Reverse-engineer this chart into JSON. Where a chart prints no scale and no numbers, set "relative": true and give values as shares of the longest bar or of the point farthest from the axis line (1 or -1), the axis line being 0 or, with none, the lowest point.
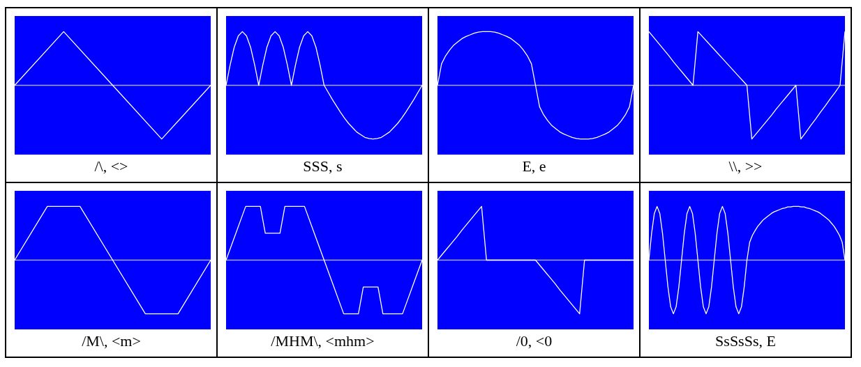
{
  "chart_data": [
    {
      "type": "line",
      "title": "/\\, <>",
      "relative": true,
      "marker": "none",
      "categories": [
        null,
        null,
        null,
        null,
        null
      ],
      "series": [
        {
          "color": "#ffffff",
          "values": [
            0,
            1,
            0,
            -1,
            0
          ]
        }
      ]
    },
    {
      "type": "line",
      "title": "SSS, s",
      "relative": true,
      "marker": "none",
      "categories": [
        null,
        null,
        null,
        null,
        null,
        null,
        null,
        null,
        null,
        null,
        null,
        null,
        null,
        null,
        null,
        null,
        null,
        null,
        null,
        null,
        null,
        null,
        null,
        null,
        null,
        null,
        null,
        null,
        null,
        null,
        null,
        null,
        null,
        null,
        null,
        null,
        null,
        null,
        null,
        null,
        null,
        null,
        null,
        null,
        null,
        null,
        null,
        null,
        null
      ],
      "series": [
        {
          "color": "#ffffff",
          "values": [
            0,
            0.38,
            0.71,
            0.92,
            1,
            0.92,
            0.71,
            0.38,
            0,
            0.38,
            0.71,
            0.92,
            1,
            0.92,
            0.71,
            0.38,
            0,
            0.38,
            0.71,
            0.92,
            1,
            0.92,
            0.71,
            0.38,
            0,
            -0.13,
            -0.26,
            -0.38,
            -0.5,
            -0.61,
            -0.71,
            -0.79,
            -0.87,
            -0.92,
            -0.97,
            -0.99,
            -1,
            -0.99,
            -0.97,
            -0.92,
            -0.87,
            -0.79,
            -0.71,
            -0.61,
            -0.5,
            -0.38,
            -0.26,
            -0.13,
            0
          ]
        }
      ]
    },
    {
      "type": "line",
      "title": "E, e",
      "relative": true,
      "marker": "none",
      "categories": [
        null,
        null,
        null,
        null,
        null,
        null,
        null,
        null,
        null,
        null,
        null,
        null,
        null,
        null,
        null,
        null,
        null,
        null,
        null,
        null,
        null,
        null,
        null,
        null,
        null,
        null,
        null,
        null,
        null,
        null,
        null,
        null,
        null,
        null,
        null,
        null,
        null,
        null,
        null,
        null,
        null,
        null,
        null,
        null,
        null,
        null,
        null,
        null,
        null
      ],
      "series": [
        {
          "color": "#ffffff",
          "values": [
            0,
            0.4,
            0.55,
            0.66,
            0.75,
            0.81,
            0.87,
            0.91,
            0.94,
            0.97,
            0.99,
            1,
            1,
            1,
            0.99,
            0.97,
            0.94,
            0.91,
            0.87,
            0.81,
            0.75,
            0.66,
            0.55,
            0.4,
            0,
            -0.4,
            -0.55,
            -0.66,
            -0.75,
            -0.81,
            -0.87,
            -0.91,
            -0.94,
            -0.97,
            -0.99,
            -1,
            -1,
            -1,
            -0.99,
            -0.97,
            -0.94,
            -0.91,
            -0.87,
            -0.81,
            -0.75,
            -0.66,
            -0.55,
            -0.4,
            0
          ]
        }
      ]
    },
    {
      "type": "line",
      "title": "\\\\, >>",
      "relative": true,
      "marker": "none",
      "categories": [
        null,
        null,
        null,
        null,
        null,
        null,
        null,
        null,
        null,
        null,
        null,
        null,
        null,
        null,
        null,
        null,
        null,
        null,
        null,
        null,
        null,
        null,
        null,
        null,
        null,
        null,
        null,
        null,
        null,
        null,
        null,
        null,
        null,
        null,
        null,
        null,
        null,
        null,
        null,
        null,
        null
      ],
      "series": [
        {
          "color": "#ffffff",
          "values": [
            1,
            0.89,
            0.78,
            0.67,
            0.56,
            0.44,
            0.33,
            0.22,
            0.11,
            0,
            1,
            0.9,
            0.8,
            0.7,
            0.6,
            0.5,
            0.4,
            0.3,
            0.2,
            0.1,
            0,
            -1,
            -0.89,
            -0.78,
            -0.67,
            -0.56,
            -0.44,
            -0.33,
            -0.22,
            -0.11,
            0,
            -1,
            -0.88,
            -0.75,
            -0.63,
            -0.5,
            -0.38,
            -0.25,
            -0.13,
            0,
            1
          ]
        }
      ]
    },
    {
      "type": "line",
      "title": "/M\\, <m>",
      "relative": true,
      "marker": "none",
      "categories": [
        null,
        null,
        null,
        null,
        null,
        null,
        null
      ],
      "series": [
        {
          "color": "#ffffff",
          "values": [
            0,
            1,
            1,
            0,
            -1,
            -1,
            0
          ]
        }
      ]
    },
    {
      "type": "line",
      "title": "/MHM\\, <mhm>",
      "relative": true,
      "marker": "none",
      "categories": [
        null,
        null,
        null,
        null,
        null,
        null,
        null,
        null,
        null,
        null,
        null,
        null,
        null,
        null,
        null,
        null,
        null,
        null,
        null,
        null,
        null,
        null,
        null,
        null,
        null,
        null,
        null,
        null,
        null,
        null,
        null,
        null,
        null,
        null,
        null,
        null,
        null,
        null,
        null,
        null,
        null
      ],
      "series": [
        {
          "color": "#ffffff",
          "values": [
            0,
            0.25,
            0.5,
            0.75,
            1,
            1,
            1,
            1,
            0.5,
            0.5,
            0.5,
            0.5,
            1,
            1,
            1,
            1,
            1,
            0.75,
            0.5,
            0.25,
            0,
            -0.25,
            -0.5,
            -0.75,
            -1,
            -1,
            -1,
            -1,
            -0.5,
            -0.5,
            -0.5,
            -0.5,
            -1,
            -1,
            -1,
            -1,
            -1,
            -0.75,
            -0.5,
            -0.25,
            0
          ]
        }
      ]
    },
    {
      "type": "line",
      "title": "/0, <0",
      "relative": true,
      "marker": "none",
      "categories": [
        null,
        null,
        null,
        null,
        null,
        null,
        null,
        null,
        null,
        null,
        null,
        null,
        null,
        null,
        null,
        null,
        null,
        null,
        null,
        null,
        null,
        null,
        null,
        null,
        null,
        null,
        null,
        null,
        null,
        null,
        null,
        null,
        null,
        null,
        null,
        null,
        null,
        null,
        null,
        null,
        null
      ],
      "series": [
        {
          "color": "#ffffff",
          "values": [
            0,
            0.11,
            0.22,
            0.33,
            0.44,
            0.56,
            0.67,
            0.78,
            0.89,
            1,
            0,
            0,
            0,
            0,
            0,
            0,
            0,
            0,
            0,
            0,
            0,
            -0.11,
            -0.22,
            -0.33,
            -0.44,
            -0.56,
            -0.67,
            -0.78,
            -0.89,
            -1,
            0,
            0,
            0,
            0,
            0,
            0,
            0,
            0,
            0,
            0,
            0
          ]
        }
      ]
    },
    {
      "type": "line",
      "title": "SsSsSs, E",
      "relative": true,
      "marker": "none",
      "categories": [
        null,
        null,
        null,
        null,
        null,
        null,
        null,
        null,
        null,
        null,
        null,
        null,
        null,
        null,
        null,
        null,
        null,
        null,
        null,
        null,
        null,
        null,
        null,
        null,
        null,
        null,
        null,
        null,
        null,
        null,
        null,
        null,
        null,
        null,
        null,
        null,
        null,
        null,
        null,
        null,
        null,
        null,
        null,
        null,
        null,
        null,
        null,
        null,
        null,
        null,
        null,
        null,
        null,
        null,
        null,
        null,
        null,
        null,
        null,
        null,
        null,
        null,
        null,
        null,
        null,
        null,
        null,
        null,
        null,
        null,
        null,
        null,
        null
      ],
      "series": [
        {
          "color": "#ffffff",
          "values": [
            0,
            0.5,
            0.87,
            1,
            0.87,
            0.5,
            0,
            -0.5,
            -0.87,
            -1,
            -0.87,
            -0.5,
            0,
            0.5,
            0.87,
            1,
            0.87,
            0.5,
            0,
            -0.5,
            -0.87,
            -1,
            -0.87,
            -0.5,
            0,
            0.5,
            0.87,
            1,
            0.87,
            0.5,
            0,
            -0.5,
            -0.87,
            -1,
            -0.87,
            -0.5,
            0,
            0.33,
            0.46,
            0.55,
            0.63,
            0.69,
            0.75,
            0.79,
            0.83,
            0.87,
            0.9,
            0.92,
            0.94,
            0.96,
            0.97,
            0.99,
            0.99,
            1,
            1,
            1,
            0.99,
            0.99,
            0.97,
            0.96,
            0.94,
            0.92,
            0.9,
            0.87,
            0.83,
            0.79,
            0.75,
            0.69,
            0.63,
            0.55,
            0.46,
            0.33,
            0
          ]
        }
      ]
    }
  ]
}
